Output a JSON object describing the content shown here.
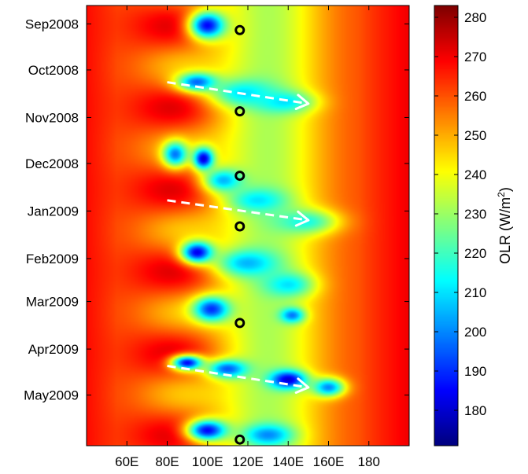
{
  "chart_data": {
    "type": "heatmap",
    "title": "",
    "xlabel": "",
    "ylabel": "",
    "x_axis": {
      "range": [
        40,
        200
      ],
      "ticks": [
        {
          "value": 60,
          "label": "60E"
        },
        {
          "value": 80,
          "label": "80E"
        },
        {
          "value": 100,
          "label": "100E"
        },
        {
          "value": 120,
          "label": "120E"
        },
        {
          "value": 140,
          "label": "140E"
        },
        {
          "value": 160,
          "label": "160E"
        },
        {
          "value": 180,
          "label": "180"
        }
      ]
    },
    "y_axis": {
      "range": [
        "2008-08-20",
        "2009-06-03"
      ],
      "reversed": true,
      "ticks": [
        {
          "date": "2008-09-01",
          "label": "Sep2008"
        },
        {
          "date": "2008-10-01",
          "label": "Oct2008"
        },
        {
          "date": "2008-11-01",
          "label": "Nov2008"
        },
        {
          "date": "2008-12-01",
          "label": "Dec2008"
        },
        {
          "date": "2009-01-01",
          "label": "Jan2009"
        },
        {
          "date": "2009-02-01",
          "label": "Feb2009"
        },
        {
          "date": "2009-03-01",
          "label": "Mar2009"
        },
        {
          "date": "2009-04-01",
          "label": "Apr2009"
        },
        {
          "date": "2009-05-01",
          "label": "May2009"
        }
      ]
    },
    "colorbar": {
      "label_text": "OLR (W/m",
      "label_superscript": "2",
      "label_close": ")",
      "range": [
        171,
        283
      ],
      "ticks": [
        180,
        190,
        200,
        210,
        220,
        230,
        240,
        250,
        260,
        270,
        280
      ],
      "colormap": "jet"
    },
    "markers": [
      {
        "lon": 116,
        "date": "2008-09-05"
      },
      {
        "lon": 116,
        "date": "2008-10-28"
      },
      {
        "lon": 116,
        "date": "2008-12-09"
      },
      {
        "lon": 116,
        "date": "2009-01-11"
      },
      {
        "lon": 116,
        "date": "2009-03-15"
      },
      {
        "lon": 116,
        "date": "2009-05-30"
      }
    ],
    "arrows": [
      {
        "lon_start": 80,
        "date_start": "2008-10-09",
        "lon_end": 150,
        "date_end": "2008-10-23"
      },
      {
        "lon_start": 80,
        "date_start": "2008-12-25",
        "lon_end": 150,
        "date_end": "2009-01-07"
      },
      {
        "lon_start": 80,
        "date_start": "2009-04-12",
        "lon_end": 150,
        "date_end": "2009-04-26"
      }
    ],
    "convective_features": [
      {
        "lon": 100,
        "date": "2008-09-02",
        "olr": 185,
        "sigma_lon": 9,
        "sigma_days": 9
      },
      {
        "lon": 95,
        "date": "2008-10-09",
        "olr": 195,
        "sigma_lon": 10,
        "sigma_days": 6
      },
      {
        "lon": 118,
        "date": "2008-10-16",
        "olr": 210,
        "sigma_lon": 16,
        "sigma_days": 9
      },
      {
        "lon": 138,
        "date": "2008-10-22",
        "olr": 210,
        "sigma_lon": 14,
        "sigma_days": 7
      },
      {
        "lon": 98,
        "date": "2008-11-28",
        "olr": 180,
        "sigma_lon": 5,
        "sigma_days": 7
      },
      {
        "lon": 84,
        "date": "2008-11-25",
        "olr": 198,
        "sigma_lon": 6,
        "sigma_days": 8
      },
      {
        "lon": 108,
        "date": "2008-12-12",
        "olr": 205,
        "sigma_lon": 10,
        "sigma_days": 8
      },
      {
        "lon": 125,
        "date": "2008-12-25",
        "olr": 210,
        "sigma_lon": 14,
        "sigma_days": 8
      },
      {
        "lon": 148,
        "date": "2009-01-08",
        "olr": 215,
        "sigma_lon": 16,
        "sigma_days": 8
      },
      {
        "lon": 95,
        "date": "2009-01-28",
        "olr": 182,
        "sigma_lon": 8,
        "sigma_days": 7
      },
      {
        "lon": 120,
        "date": "2009-02-04",
        "olr": 205,
        "sigma_lon": 15,
        "sigma_days": 9
      },
      {
        "lon": 140,
        "date": "2009-02-18",
        "olr": 210,
        "sigma_lon": 12,
        "sigma_days": 8
      },
      {
        "lon": 102,
        "date": "2009-03-06",
        "olr": 190,
        "sigma_lon": 9,
        "sigma_days": 8
      },
      {
        "lon": 142,
        "date": "2009-03-10",
        "olr": 198,
        "sigma_lon": 6,
        "sigma_days": 5
      },
      {
        "lon": 90,
        "date": "2009-04-10",
        "olr": 185,
        "sigma_lon": 8,
        "sigma_days": 5
      },
      {
        "lon": 110,
        "date": "2009-04-14",
        "olr": 195,
        "sigma_lon": 10,
        "sigma_days": 6
      },
      {
        "lon": 140,
        "date": "2009-04-21",
        "olr": 180,
        "sigma_lon": 9,
        "sigma_days": 6
      },
      {
        "lon": 160,
        "date": "2009-04-26",
        "olr": 200,
        "sigma_lon": 8,
        "sigma_days": 6
      },
      {
        "lon": 100,
        "date": "2009-05-24",
        "olr": 185,
        "sigma_lon": 10,
        "sigma_days": 7
      },
      {
        "lon": 130,
        "date": "2009-05-27",
        "olr": 200,
        "sigma_lon": 12,
        "sigma_days": 7
      }
    ]
  }
}
